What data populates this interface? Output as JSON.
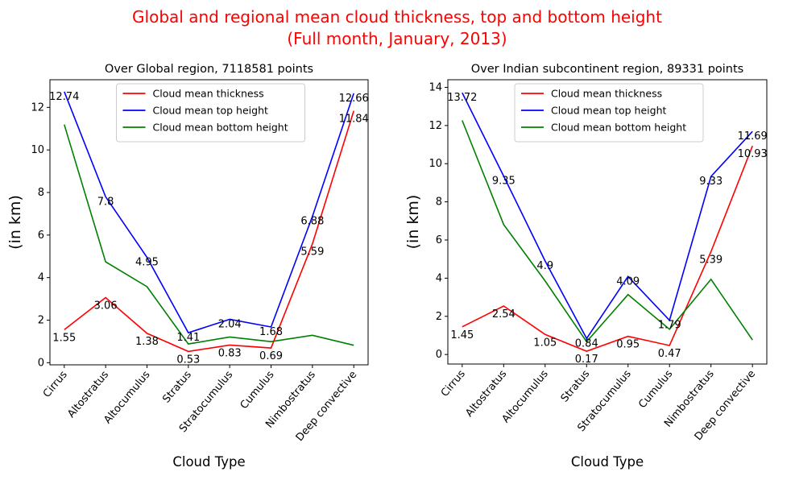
{
  "figure": {
    "title_line1": "Global and regional mean cloud thickness, top and bottom height",
    "title_line2": "(Full month, January, 2013)",
    "title_color": "#ff0000"
  },
  "chart_data": [
    {
      "type": "line",
      "title": "Over Global region, 7118581 points",
      "xlabel": "Cloud Type",
      "ylabel": "(in km)",
      "categories": [
        "Cirrus",
        "Altostratus",
        "Altocumulus",
        "Stratus",
        "Stratocumulus",
        "Cumulus",
        "Nimbostratus",
        "Deep convective"
      ],
      "ylim": [
        -0.1,
        13.3
      ],
      "yticks": [
        0,
        2,
        4,
        6,
        8,
        10,
        12
      ],
      "legend_position": "upper center",
      "series": [
        {
          "name": "Cloud mean thickness",
          "color": "#ff0000",
          "values": [
            1.55,
            3.06,
            1.38,
            0.53,
            0.83,
            0.69,
            5.59,
            11.84
          ]
        },
        {
          "name": "Cloud mean top height",
          "color": "#0000ff",
          "values": [
            12.74,
            7.8,
            4.95,
            1.41,
            2.04,
            1.68,
            6.88,
            12.66
          ]
        },
        {
          "name": "Cloud mean bottom height",
          "color": "#008000",
          "values": [
            11.19,
            4.74,
            3.57,
            0.88,
            1.21,
            0.99,
            1.29,
            0.82
          ]
        }
      ],
      "labeled_series": [
        "Cloud mean thickness",
        "Cloud mean top height"
      ]
    },
    {
      "type": "line",
      "title": "Over Indian subcontinent region, 89331 points",
      "xlabel": "Cloud Type",
      "ylabel": "(in km)",
      "categories": [
        "Cirrus",
        "Altostratus",
        "Altocumulus",
        "Stratus",
        "Stratocumulus",
        "Cumulus",
        "Nimbostratus",
        "Deep convective"
      ],
      "ylim": [
        -0.5,
        14.4
      ],
      "yticks": [
        0,
        2,
        4,
        6,
        8,
        10,
        12,
        14
      ],
      "legend_position": "upper center",
      "series": [
        {
          "name": "Cloud mean thickness",
          "color": "#ff0000",
          "values": [
            1.45,
            2.54,
            1.05,
            0.17,
            0.95,
            0.47,
            5.39,
            10.93
          ]
        },
        {
          "name": "Cloud mean top height",
          "color": "#0000ff",
          "values": [
            13.72,
            9.35,
            4.9,
            0.84,
            4.09,
            1.79,
            9.33,
            11.69
          ]
        },
        {
          "name": "Cloud mean bottom height",
          "color": "#008000",
          "values": [
            12.27,
            6.81,
            3.85,
            0.67,
            3.14,
            1.32,
            3.94,
            0.76
          ]
        }
      ],
      "labeled_series": [
        "Cloud mean thickness",
        "Cloud mean top height"
      ]
    }
  ]
}
